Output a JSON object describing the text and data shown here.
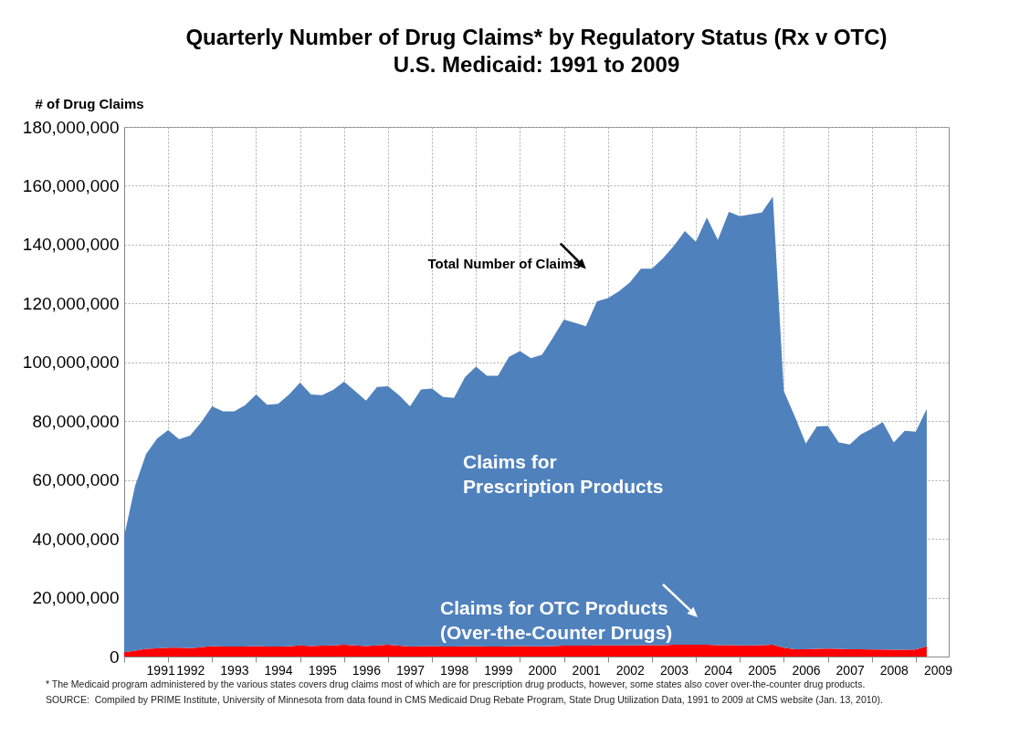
{
  "chart_data": {
    "type": "area",
    "title": "Quarterly Number of Drug Claims* by Regulatory Status (Rx v OTC)",
    "subtitle": "U.S. Medicaid: 1991 to 2009",
    "ylabel": "# of Drug Claims",
    "stacked": true,
    "grid": true,
    "x": [
      1991,
      1991.25,
      1991.5,
      1991.75,
      1992,
      1992.25,
      1992.5,
      1992.75,
      1993,
      1993.25,
      1993.5,
      1993.75,
      1994,
      1994.25,
      1994.5,
      1994.75,
      1995,
      1995.25,
      1995.5,
      1995.75,
      1996,
      1996.25,
      1996.5,
      1996.75,
      1997,
      1997.25,
      1997.5,
      1997.75,
      1998,
      1998.25,
      1998.5,
      1998.75,
      1999,
      1999.25,
      1999.5,
      1999.75,
      2000,
      2000.25,
      2000.5,
      2000.75,
      2001,
      2001.25,
      2001.5,
      2001.75,
      2002,
      2002.25,
      2002.5,
      2002.75,
      2003,
      2003.25,
      2003.5,
      2003.75,
      2004,
      2004.25,
      2004.5,
      2004.75,
      2005,
      2005.25,
      2005.5,
      2005.75,
      2006,
      2006.25,
      2006.5,
      2006.75,
      2007,
      2007.25,
      2007.5,
      2007.75,
      2008,
      2008.25,
      2008.5,
      2008.75,
      2009,
      2009.25
    ],
    "series": [
      {
        "name": "Claims for OTC Products (Over-the-Counter Drugs)",
        "color": "#ff0000",
        "values": [
          1500000,
          2000000,
          2600000,
          2800000,
          3000000,
          3000000,
          2900000,
          3200000,
          3600000,
          3400000,
          3400000,
          3400000,
          3600000,
          3400000,
          3400000,
          3500000,
          3800000,
          3600000,
          3700000,
          3800000,
          4000000,
          3800000,
          3600000,
          3800000,
          4000000,
          3700000,
          3400000,
          3500000,
          3600000,
          3400000,
          3400000,
          3500000,
          3600000,
          3400000,
          3400000,
          3500000,
          3600000,
          3500000,
          3500000,
          3600000,
          3700000,
          3700000,
          3700000,
          3800000,
          3800000,
          3800000,
          3800000,
          3900000,
          3900000,
          3900000,
          4000000,
          4000000,
          4000000,
          4000000,
          3900000,
          3900000,
          3800000,
          3800000,
          3900000,
          4000000,
          3000000,
          2500000,
          2500000,
          2600000,
          2700000,
          2600000,
          2500000,
          2500000,
          2400000,
          2400000,
          2300000,
          2300000,
          2400000,
          3500000
        ]
      },
      {
        "name": "Claims for Prescription Products",
        "color": "#4f81bd",
        "values": [
          39500000,
          56100000,
          66300000,
          71300000,
          74000000,
          70900000,
          72200000,
          76400000,
          81400000,
          79900000,
          79900000,
          82000000,
          85500000,
          82200000,
          82500000,
          85600000,
          89300000,
          85500000,
          85100000,
          86800000,
          89400000,
          86400000,
          83400000,
          87800000,
          87900000,
          85100000,
          81600000,
          87300000,
          87500000,
          84800000,
          84500000,
          91500000,
          94900000,
          92000000,
          92000000,
          98400000,
          100200000,
          97900000,
          99100000,
          104800000,
          110800000,
          109700000,
          108600000,
          116900000,
          118000000,
          120300000,
          123400000,
          127900000,
          127900000,
          131400000,
          135600000,
          140600000,
          137000000,
          145200000,
          137700000,
          147200000,
          145900000,
          146500000,
          147000000,
          152300000,
          87200000,
          79100000,
          69900000,
          75600000,
          75700000,
          70200000,
          69600000,
          73000000,
          75000000,
          77300000,
          70500000,
          74400000,
          74000000,
          80700000
        ]
      }
    ],
    "xlim": [
      1991,
      2009.75
    ],
    "xticks": [
      {
        "value": 1991,
        "label": null
      },
      {
        "value": 1991.5,
        "label": "1991"
      },
      {
        "value": 1992,
        "label": null
      },
      {
        "value": 1992.5,
        "label": "1992"
      },
      {
        "value": 1993,
        "label": null
      },
      {
        "value": 1993.5,
        "label": "1993"
      },
      {
        "value": 1994,
        "label": null
      },
      {
        "value": 1994.5,
        "label": "1994"
      },
      {
        "value": 1995,
        "label": null
      },
      {
        "value": 1995.5,
        "label": "1995"
      },
      {
        "value": 1996,
        "label": null
      },
      {
        "value": 1996.5,
        "label": "1996"
      },
      {
        "value": 1997,
        "label": null
      },
      {
        "value": 1997.5,
        "label": "1997"
      },
      {
        "value": 1998,
        "label": null
      },
      {
        "value": 1998.5,
        "label": "1998"
      },
      {
        "value": 1999,
        "label": null
      },
      {
        "value": 1999.5,
        "label": "1999"
      },
      {
        "value": 2000,
        "label": null
      },
      {
        "value": 2000.5,
        "label": "2000"
      },
      {
        "value": 2001,
        "label": null
      },
      {
        "value": 2001.5,
        "label": "2001"
      },
      {
        "value": 2002,
        "label": null
      },
      {
        "value": 2002.5,
        "label": "2002"
      },
      {
        "value": 2003,
        "label": null
      },
      {
        "value": 2003.5,
        "label": "2003"
      },
      {
        "value": 2004,
        "label": null
      },
      {
        "value": 2004.5,
        "label": "2004"
      },
      {
        "value": 2005,
        "label": null
      },
      {
        "value": 2005.5,
        "label": "2005"
      },
      {
        "value": 2006,
        "label": null
      },
      {
        "value": 2006.5,
        "label": "2006"
      },
      {
        "value": 2007,
        "label": null
      },
      {
        "value": 2007.5,
        "label": "2007"
      },
      {
        "value": 2008,
        "label": null
      },
      {
        "value": 2008.5,
        "label": "2008"
      },
      {
        "value": 2009,
        "label": null
      },
      {
        "value": 2009.5,
        "label": "2009"
      }
    ],
    "ylim": [
      0,
      180000000
    ],
    "yticks": [
      {
        "value": 0,
        "label": "0"
      },
      {
        "value": 20000000,
        "label": "20,000,000"
      },
      {
        "value": 40000000,
        "label": "40,000,000"
      },
      {
        "value": 60000000,
        "label": "60,000,000"
      },
      {
        "value": 80000000,
        "label": "80,000,000"
      },
      {
        "value": 100000000,
        "label": "100,000,000"
      },
      {
        "value": 120000000,
        "label": "120,000,000"
      },
      {
        "value": 140000000,
        "label": "140,000,000"
      },
      {
        "value": 160000000,
        "label": "160,000,000"
      },
      {
        "value": 180000000,
        "label": "180,000,000"
      }
    ],
    "annotations": [
      {
        "text": "Total Number of Claims",
        "x": 2002,
        "y": 121800000
      },
      "* The Medicaid program administered by the various states covers drug claims most of which are for prescription drug products, however, some states also cover over-the-counter drug products.",
      "SOURCE:  Compiled by PRIME Institute, University of Minnesota from data found in CMS Medicaid Drug Rebate Program, State Drug Utilization Data, 1991 to 2009 at CMS website (Jan. 13, 2010)."
    ]
  }
}
